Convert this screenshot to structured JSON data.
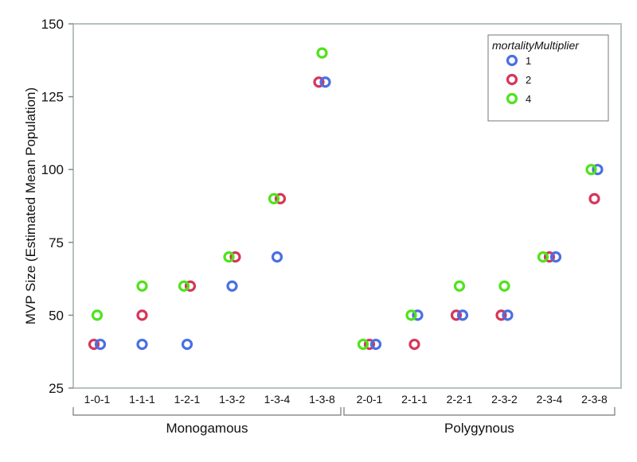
{
  "chart_data": {
    "type": "scatter",
    "ylabel": "MVP Size (Estimated Mean Population)",
    "xlabel": "",
    "ylim": [
      25,
      150
    ],
    "yticks": [
      25,
      50,
      75,
      100,
      125,
      150
    ],
    "grid": false,
    "categories": [
      "1-0-1",
      "1-1-1",
      "1-2-1",
      "1-3-2",
      "1-3-4",
      "1-3-8",
      "2-0-1",
      "2-1-1",
      "2-2-1",
      "2-3-2",
      "2-3-4",
      "2-3-8"
    ],
    "groups": [
      {
        "label": "Monogamous",
        "categories": [
          "1-0-1",
          "1-1-1",
          "1-2-1",
          "1-3-2",
          "1-3-4",
          "1-3-8"
        ]
      },
      {
        "label": "Polygynous",
        "categories": [
          "2-0-1",
          "2-1-1",
          "2-2-1",
          "2-3-2",
          "2-3-4",
          "2-3-8"
        ]
      }
    ],
    "legend": {
      "title": "mortalityMultiplier",
      "position": "top-right"
    },
    "series": [
      {
        "name": "1",
        "color": "#4a6fe3",
        "values": [
          40,
          40,
          40,
          60,
          70,
          130,
          40,
          50,
          50,
          50,
          70,
          100
        ]
      },
      {
        "name": "2",
        "color": "#d6365a",
        "values": [
          40,
          50,
          60,
          70,
          90,
          130,
          40,
          40,
          50,
          50,
          70,
          90
        ]
      },
      {
        "name": "4",
        "color": "#4fe31a",
        "values": [
          50,
          60,
          60,
          70,
          90,
          140,
          40,
          50,
          60,
          60,
          70,
          100
        ]
      }
    ]
  }
}
